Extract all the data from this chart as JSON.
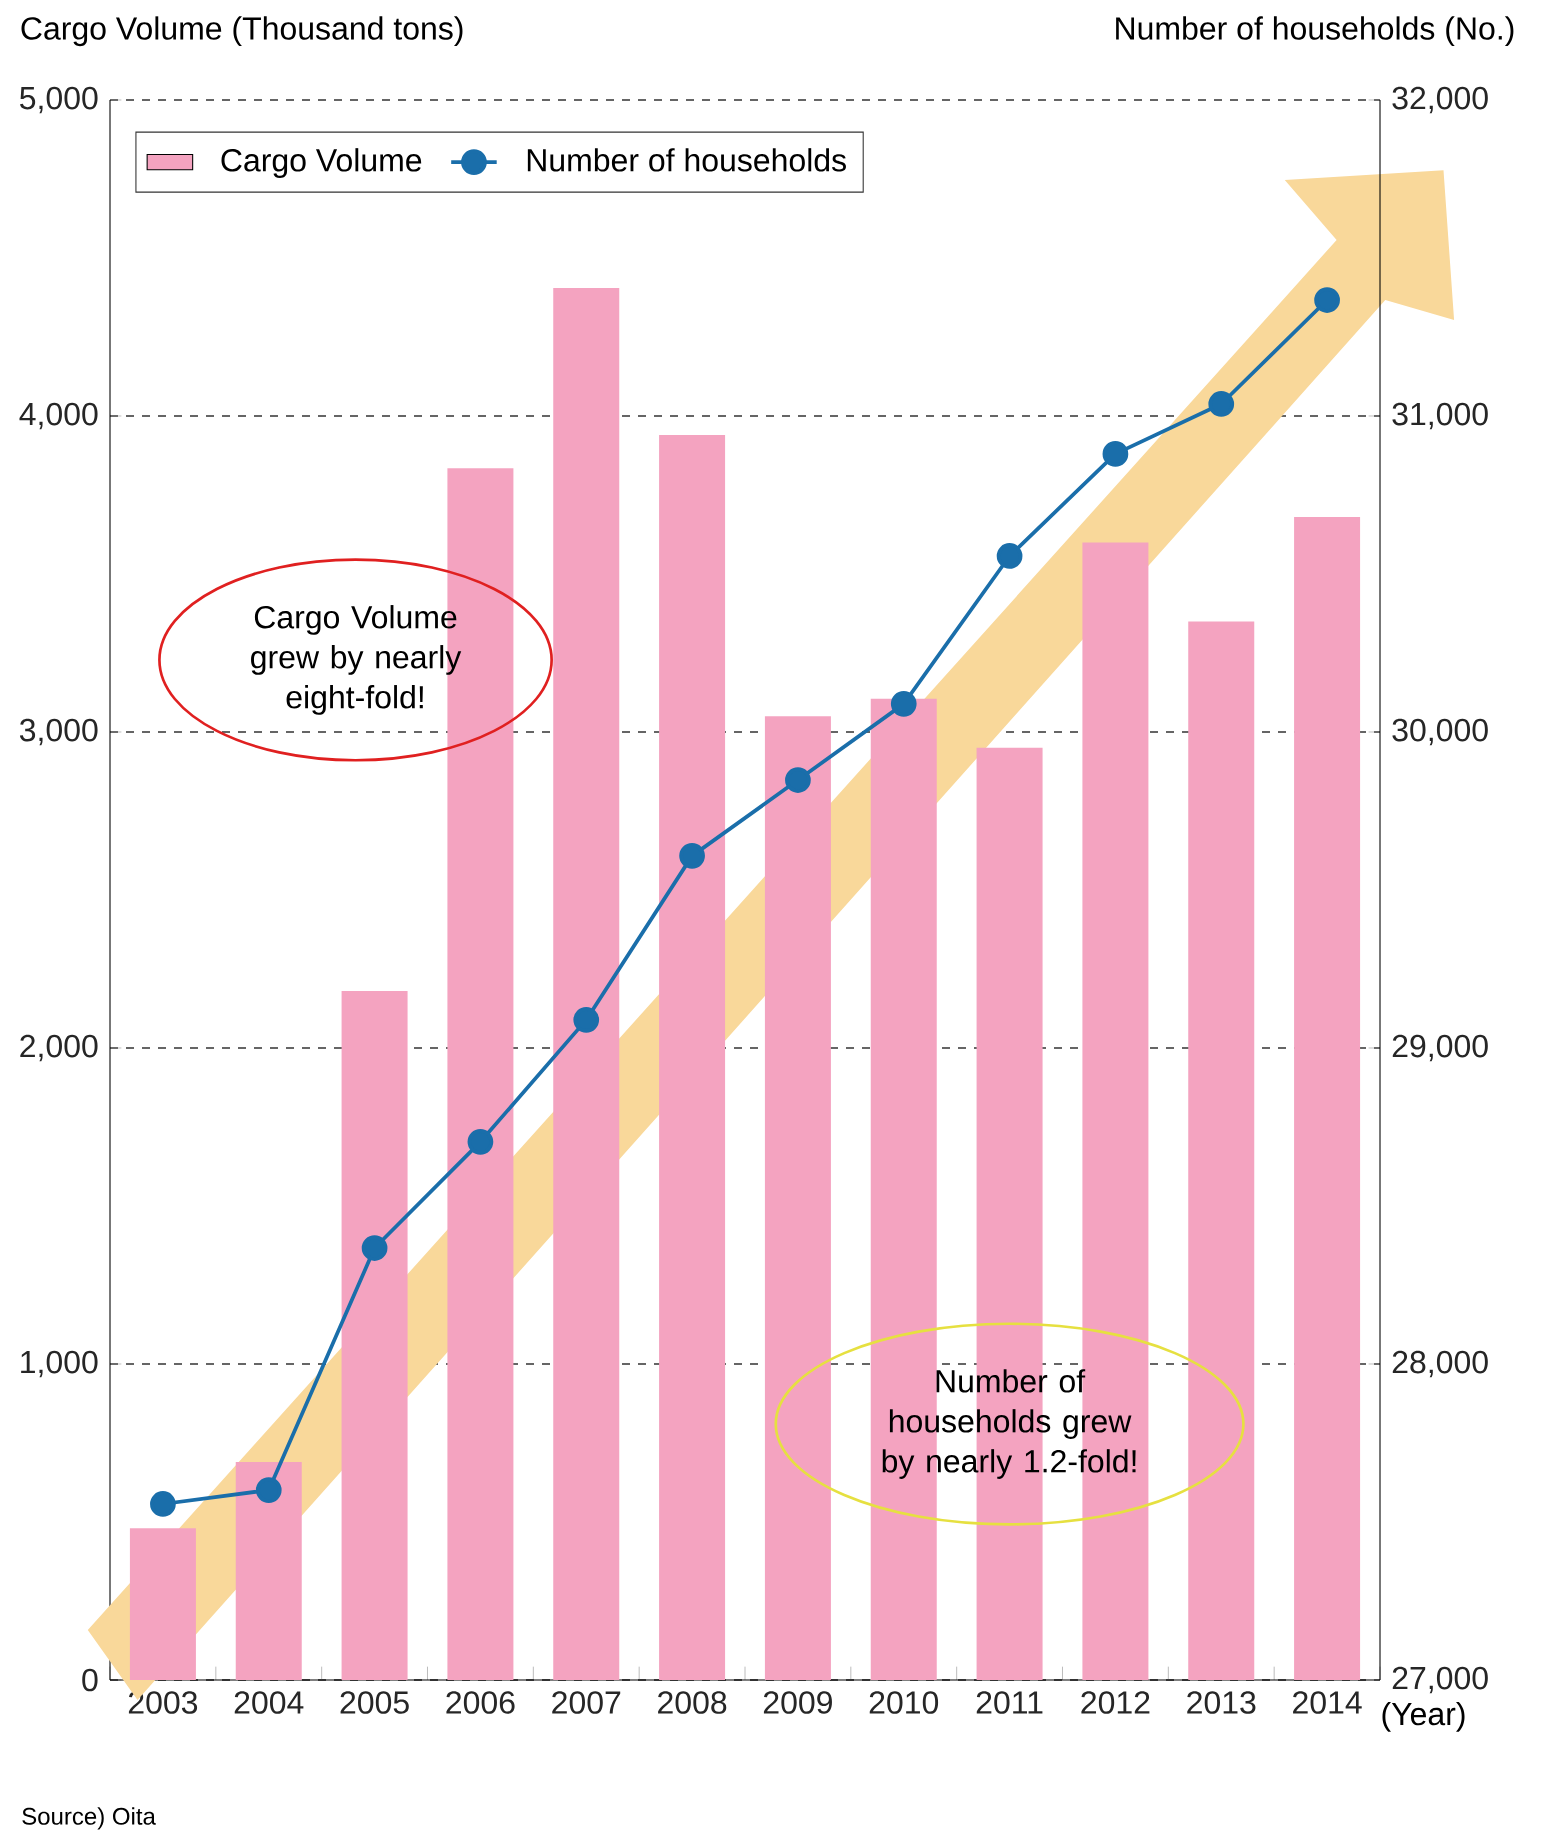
{
  "chart_data": {
    "type": "bar",
    "ylabel": "Cargo Volume (Thousand tons)",
    "y2label": "Number of households (No.)",
    "xlabel": "(Year)",
    "categories": [
      "2003",
      "2004",
      "2005",
      "2006",
      "2007",
      "2008",
      "2009",
      "2010",
      "2011",
      "2012",
      "2013",
      "2014"
    ],
    "series": [
      {
        "name": "Cargo Volume",
        "color": "#f4a3c0",
        "values": [
          480,
          690,
          2180,
          3835,
          4405,
          3940,
          3050,
          3105,
          2950,
          3600,
          3350,
          3680
        ]
      },
      {
        "name": "Number of households",
        "type": "line",
        "axis": "y2",
        "color": "#1a6eaa",
        "marker": "circle",
        "values": [
          27557,
          27601,
          28367,
          28703,
          29089,
          29608,
          29848,
          30089,
          30557,
          30880,
          31038,
          31367
        ]
      }
    ],
    "ylim": [
      0,
      5000
    ],
    "yticks": [
      {
        "value": 0,
        "label": "0"
      },
      {
        "value": 1000,
        "label": "1,000"
      },
      {
        "value": 2000,
        "label": "2,000"
      },
      {
        "value": 3000,
        "label": "3,000"
      },
      {
        "value": 4000,
        "label": "4,000"
      },
      {
        "value": 5000,
        "label": "5,000"
      }
    ],
    "y2lim": [
      27000,
      32000
    ],
    "y2ticks": [
      {
        "value": 27000,
        "label": "27,000"
      },
      {
        "value": 28000,
        "label": "28,000"
      },
      {
        "value": 29000,
        "label": "29,000"
      },
      {
        "value": 30000,
        "label": "30,000"
      },
      {
        "value": 31000,
        "label": "31,000"
      },
      {
        "value": 32000,
        "label": "32,000"
      }
    ],
    "grid": "y",
    "legend": "top left",
    "annotations": [
      "Cargo Volume grew by nearly eight-fold!",
      "Number of households grew by nearly 1.2-fold!",
      "Source) Oita"
    ]
  }
}
